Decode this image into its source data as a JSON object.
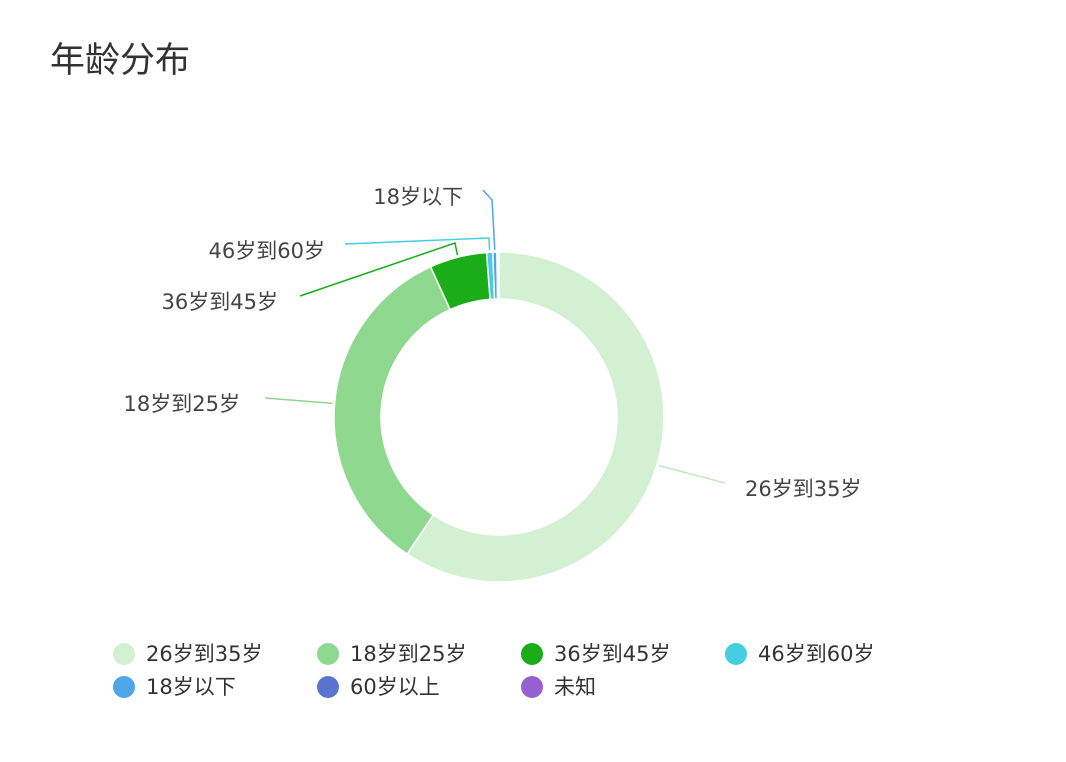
{
  "chart_data": {
    "type": "donut",
    "title": "年龄分布",
    "categories": [
      "26岁到35岁",
      "18岁到25岁",
      "36岁到45岁",
      "46岁到60岁",
      "18岁以下",
      "60岁以上",
      "未知"
    ],
    "values": [
      59.4,
      33.8,
      5.6,
      0.6,
      0.4,
      0.1,
      0.1
    ],
    "colors": [
      "#d3f0d3",
      "#8fd88f",
      "#1aad19",
      "#45cde0",
      "#4ea6e8",
      "#5b74d0",
      "#9460d2"
    ]
  }
}
